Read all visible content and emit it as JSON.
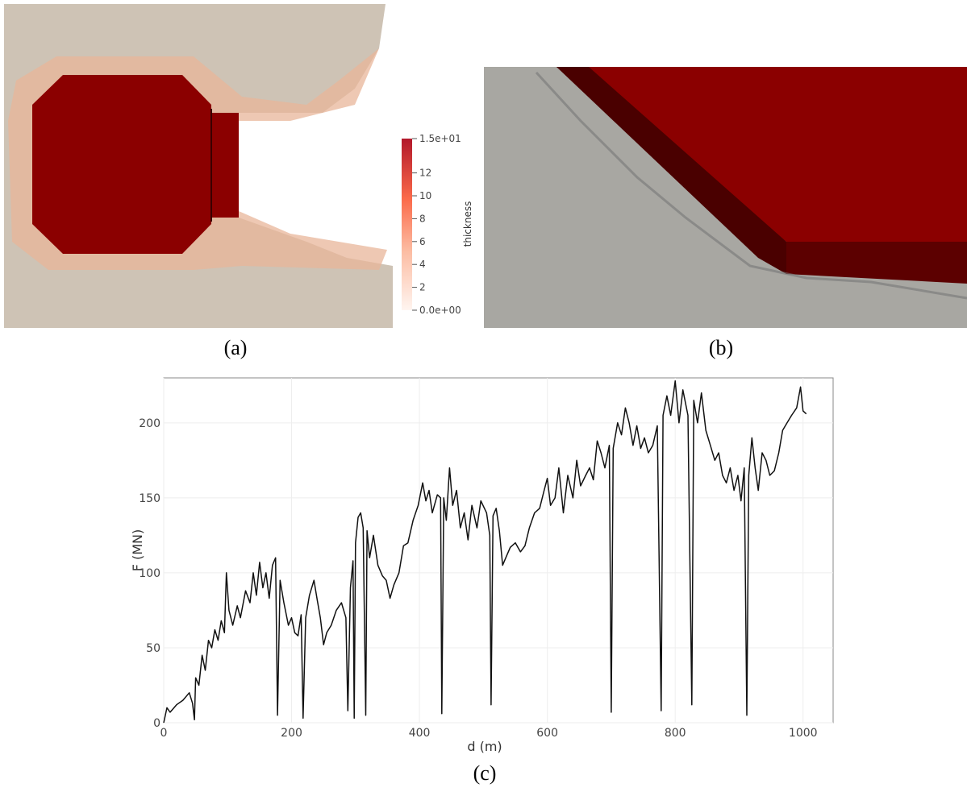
{
  "figure_a": {
    "caption": "(a)",
    "colorbar": {
      "label": "thickness",
      "clim": [
        0,
        15
      ],
      "ticks": [
        {
          "value": 15,
          "label": "1.5e+01"
        },
        12,
        10,
        8,
        6,
        4,
        2,
        {
          "value": 0,
          "label": "0.0e+00"
        }
      ]
    }
  },
  "figure_b": {
    "caption": "(b)"
  },
  "chart_data": {
    "type": "line",
    "caption": "(c)",
    "xlabel": "d (m)",
    "ylabel": "F (MN)",
    "color": "#111111",
    "grid": true,
    "xlim": [
      0,
      1047
    ],
    "ylim": [
      0,
      230
    ],
    "xticks": [
      0,
      200,
      400,
      600,
      800,
      1000
    ],
    "yticks": [
      0,
      50,
      100,
      150,
      200
    ],
    "x": [
      0,
      5,
      10,
      20,
      30,
      40,
      45,
      48,
      50,
      55,
      60,
      65,
      70,
      75,
      80,
      85,
      90,
      95,
      98,
      102,
      108,
      115,
      120,
      128,
      135,
      140,
      145,
      150,
      155,
      160,
      165,
      170,
      175,
      178,
      182,
      188,
      195,
      200,
      205,
      210,
      215,
      218,
      222,
      228,
      235,
      240,
      245,
      250,
      255,
      262,
      270,
      278,
      285,
      288,
      292,
      296,
      298,
      300,
      304,
      308,
      312,
      316,
      318,
      322,
      328,
      335,
      342,
      348,
      354,
      360,
      368,
      375,
      382,
      390,
      398,
      405,
      410,
      415,
      420,
      428,
      433,
      435,
      438,
      442,
      447,
      452,
      458,
      464,
      470,
      476,
      482,
      490,
      496,
      505,
      510,
      512,
      515,
      520,
      525,
      530,
      535,
      542,
      550,
      558,
      565,
      572,
      580,
      588,
      595,
      600,
      605,
      612,
      618,
      625,
      632,
      640,
      646,
      652,
      660,
      666,
      672,
      678,
      684,
      690,
      697,
      700,
      703,
      710,
      716,
      722,
      728,
      734,
      740,
      746,
      752,
      758,
      765,
      772,
      778,
      781,
      787,
      793,
      800,
      806,
      812,
      820,
      826,
      829,
      835,
      841,
      848,
      855,
      862,
      868,
      874,
      880,
      886,
      892,
      898,
      903,
      908,
      912,
      915,
      920,
      925,
      930,
      936,
      942,
      948,
      955,
      962,
      968,
      975,
      982,
      990,
      996,
      1000,
      1005
    ],
    "values": [
      0,
      10,
      7,
      12,
      15,
      20,
      13,
      2,
      30,
      25,
      45,
      35,
      55,
      50,
      62,
      55,
      68,
      60,
      100,
      75,
      65,
      78,
      70,
      88,
      80,
      100,
      85,
      107,
      90,
      100,
      83,
      105,
      110,
      5,
      95,
      80,
      65,
      70,
      60,
      58,
      72,
      3,
      70,
      85,
      95,
      82,
      70,
      52,
      60,
      65,
      75,
      80,
      70,
      8,
      90,
      108,
      3,
      120,
      137,
      140,
      130,
      5,
      128,
      110,
      125,
      105,
      98,
      95,
      83,
      92,
      100,
      118,
      120,
      135,
      145,
      160,
      148,
      155,
      140,
      152,
      150,
      6,
      150,
      135,
      170,
      145,
      155,
      130,
      140,
      122,
      145,
      130,
      148,
      140,
      125,
      12,
      138,
      143,
      128,
      105,
      110,
      117,
      120,
      114,
      118,
      130,
      140,
      143,
      155,
      163,
      145,
      150,
      170,
      140,
      165,
      150,
      175,
      158,
      165,
      170,
      162,
      188,
      180,
      170,
      185,
      7,
      183,
      200,
      192,
      210,
      200,
      185,
      198,
      183,
      190,
      180,
      185,
      198,
      8,
      205,
      218,
      205,
      228,
      200,
      222,
      205,
      12,
      215,
      200,
      220,
      195,
      185,
      175,
      180,
      165,
      160,
      170,
      155,
      165,
      148,
      170,
      5,
      165,
      190,
      170,
      155,
      180,
      175,
      165,
      168,
      180,
      195,
      200,
      205,
      210,
      224,
      208,
      206
    ]
  }
}
